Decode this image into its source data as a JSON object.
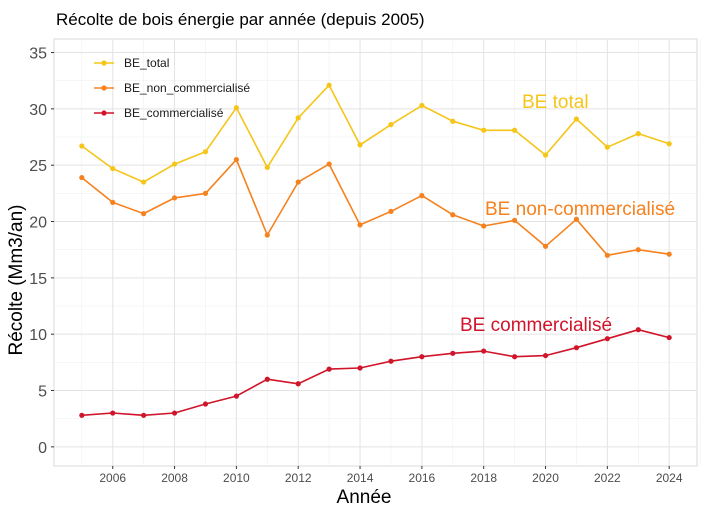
{
  "chart_data": {
    "type": "line",
    "title": "Récolte de bois énergie par année (depuis 2005)",
    "xlabel": "Année",
    "ylabel": "Récolte (Mm3/an)",
    "x": [
      2005,
      2006,
      2007,
      2008,
      2009,
      2010,
      2011,
      2012,
      2013,
      2014,
      2015,
      2016,
      2017,
      2018,
      2019,
      2020,
      2021,
      2022,
      2023,
      2024
    ],
    "xlim": [
      2004.1,
      2024.9
    ],
    "ylim": [
      -1.7,
      36.2
    ],
    "x_ticks": [
      2006,
      2008,
      2010,
      2012,
      2014,
      2016,
      2018,
      2020,
      2022,
      2024
    ],
    "y_ticks": [
      0,
      5,
      10,
      15,
      20,
      25,
      30,
      35
    ],
    "grid": true,
    "legend_position": "top-left",
    "series": [
      {
        "name": "BE_total",
        "color": "#f5c518",
        "values": [
          26.7,
          24.7,
          23.5,
          25.1,
          26.2,
          30.1,
          24.8,
          29.2,
          32.1,
          26.8,
          28.6,
          30.3,
          28.9,
          28.1,
          28.1,
          25.9,
          29.1,
          26.6,
          27.8,
          26.9
        ]
      },
      {
        "name": "BE_non_commercialisé",
        "color": "#f5821f",
        "values": [
          23.9,
          21.7,
          20.7,
          22.1,
          22.5,
          25.5,
          18.8,
          23.5,
          25.1,
          19.7,
          20.9,
          22.3,
          20.6,
          19.6,
          20.1,
          17.8,
          20.2,
          17.0,
          17.5,
          17.1
        ]
      },
      {
        "name": "BE_commercialisé",
        "color": "#d0142a",
        "values": [
          2.8,
          3.0,
          2.8,
          3.0,
          3.8,
          4.5,
          6.0,
          5.6,
          6.9,
          7.0,
          7.6,
          8.0,
          8.3,
          8.5,
          8.0,
          8.1,
          8.8,
          9.6,
          10.4,
          9.7
        ]
      }
    ],
    "annotations": [
      {
        "text": "BE total",
        "color": "#f5c518"
      },
      {
        "text": "BE non-commercialisé",
        "color": "#f5821f"
      },
      {
        "text": "BE commercialisé",
        "color": "#d0142a"
      }
    ]
  }
}
